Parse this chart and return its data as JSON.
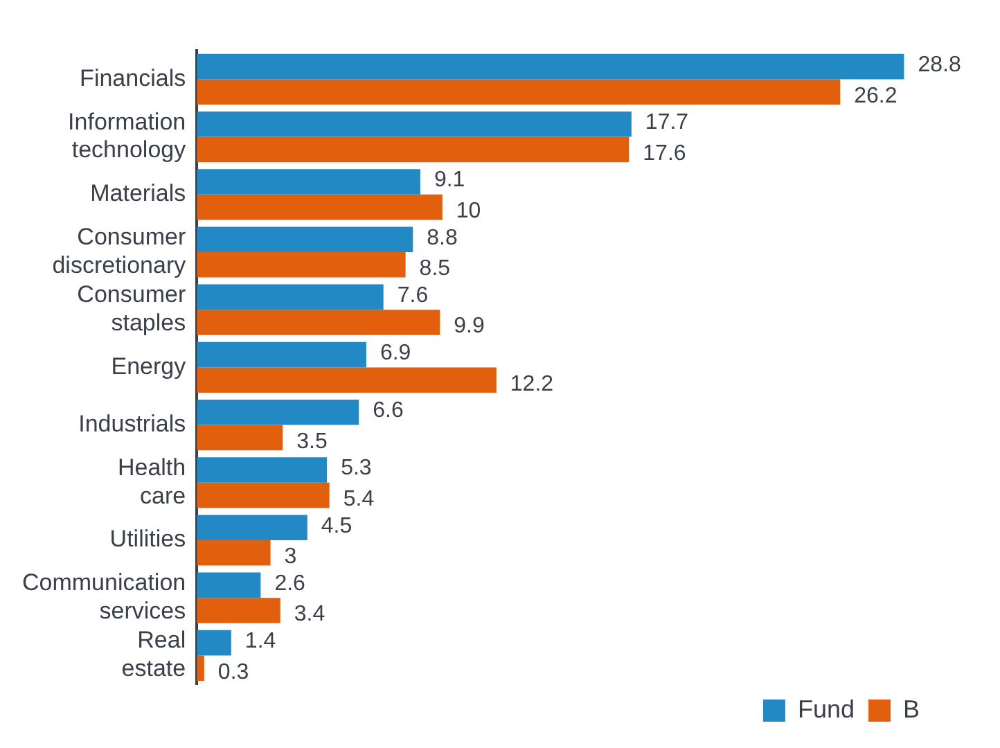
{
  "chart_data": {
    "type": "bar",
    "orientation": "horizontal",
    "categories": [
      "Financials",
      "Information technology",
      "Materials",
      "Consumer discretionary",
      "Consumer staples",
      "Energy",
      "Industrials",
      "Health care",
      "Utilities",
      "Communication services",
      "Real estate"
    ],
    "series": [
      {
        "name": "Fund",
        "color": "#2389c4",
        "values": [
          28.8,
          17.7,
          9.1,
          8.8,
          7.6,
          6.9,
          6.6,
          5.3,
          4.5,
          2.6,
          1.4
        ]
      },
      {
        "name": "B",
        "color": "#e25f0e",
        "values": [
          26.2,
          17.6,
          10,
          8.5,
          9.9,
          12.2,
          3.5,
          5.4,
          3,
          3.4,
          0.3
        ]
      }
    ],
    "data_labels": true,
    "grid": false,
    "legend": "bottom right",
    "tick_labels": "y"
  }
}
